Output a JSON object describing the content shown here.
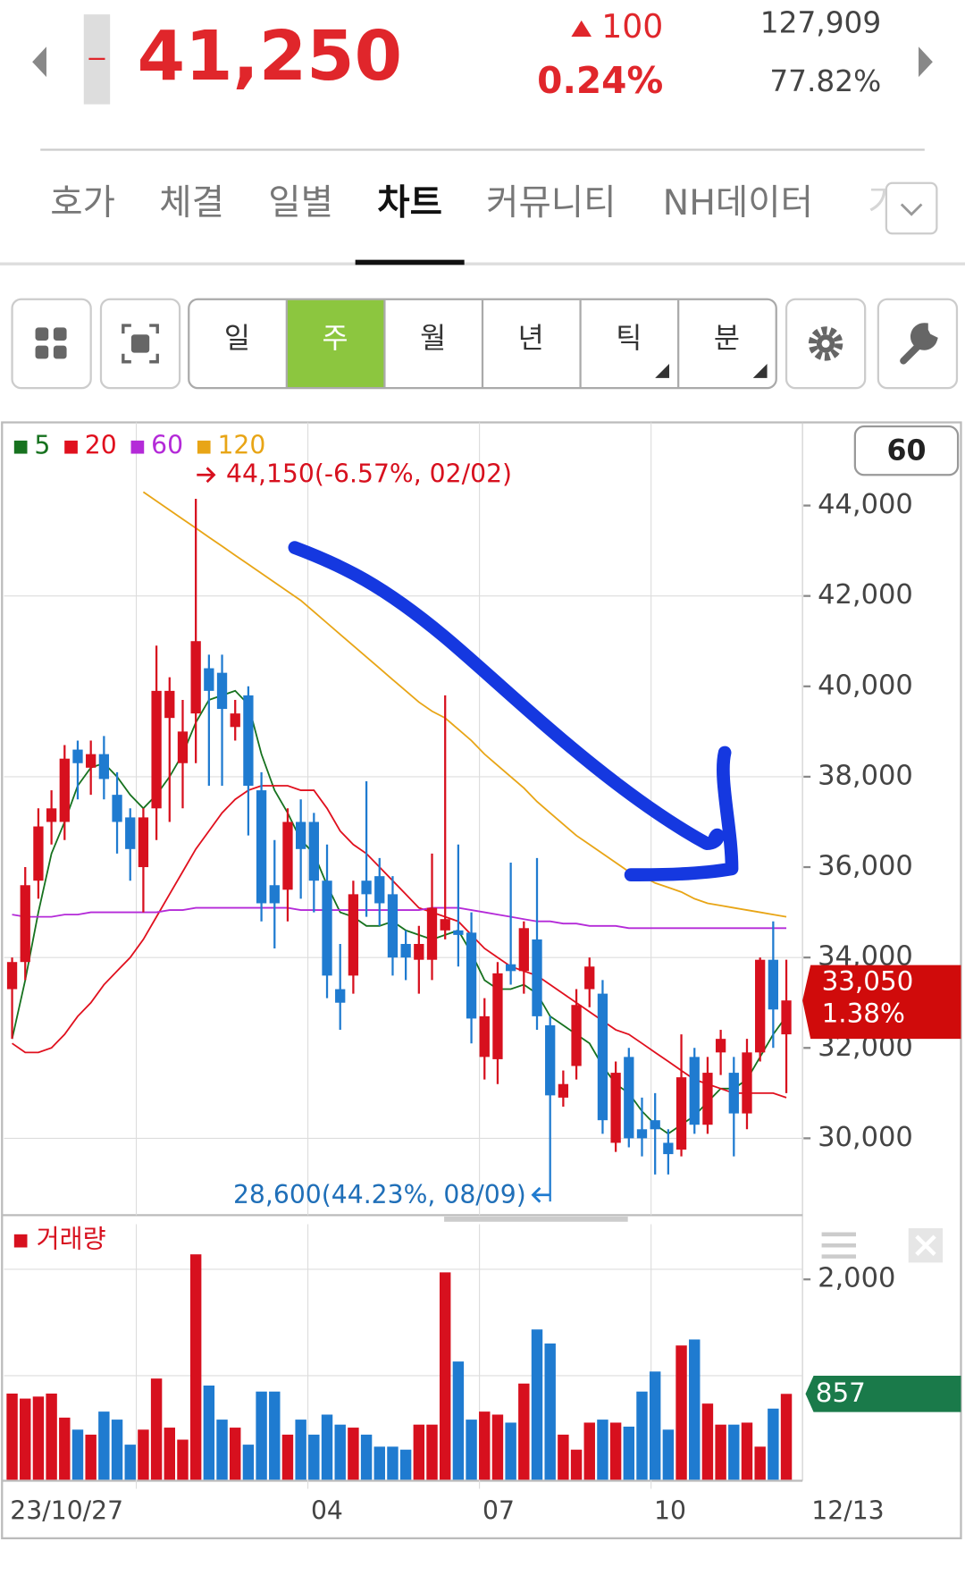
{
  "header": {
    "price": "41,250",
    "change": "100",
    "change_rate": "0.24%",
    "volume": "127,909",
    "volume_ratio": "77.82%"
  },
  "tabs": [
    "호가",
    "체결",
    "일별",
    "차트",
    "커뮤니티",
    "NH데이터",
    "거"
  ],
  "periods": [
    "일",
    "주",
    "월",
    "년",
    "틱",
    "분"
  ],
  "chart_data": {
    "type": "candlestick",
    "period_count": "60",
    "open": [
      33300,
      33900,
      35700,
      37000,
      37000,
      38600,
      38200,
      38500,
      37600,
      37100,
      36000,
      37300,
      39300,
      38300,
      39400,
      40400,
      40300,
      39100,
      39800,
      37700,
      35600,
      35500,
      37000,
      37000,
      35700,
      33300,
      33600,
      35700,
      35800,
      35400,
      34300,
      33950,
      33950,
      34600,
      34600,
      34550,
      31800,
      31750,
      33850,
      33700,
      34400,
      32500,
      30900,
      31600,
      33300,
      33200,
      29900,
      31800,
      30200,
      30400,
      29900,
      29750,
      31800,
      30300,
      31900,
      31450,
      30550,
      31900,
      33950,
      32300
    ],
    "high": [
      34000,
      36000,
      37300,
      37700,
      38700,
      38800,
      38800,
      38900,
      38100,
      37300,
      37300,
      40900,
      40200,
      39700,
      44150,
      40700,
      40700,
      39700,
      40000,
      38100,
      36600,
      37300,
      37500,
      37200,
      36500,
      34300,
      35700,
      37900,
      36200,
      35800,
      34600,
      34700,
      36300,
      39800,
      36500,
      35000,
      33100,
      33900,
      36100,
      34800,
      36200,
      32700,
      31500,
      33300,
      34000,
      33500,
      31700,
      32000,
      30900,
      31000,
      30200,
      32300,
      32000,
      31800,
      32400,
      31800,
      32200,
      34000,
      34800,
      33950
    ],
    "low": [
      32200,
      33500,
      35300,
      36500,
      36600,
      37500,
      37600,
      37500,
      36300,
      35700,
      35000,
      36600,
      37000,
      37300,
      38300,
      37800,
      37800,
      38800,
      36700,
      34800,
      34200,
      34800,
      35300,
      35000,
      33100,
      32400,
      33200,
      34900,
      34700,
      33600,
      33500,
      33200,
      33500,
      34400,
      33800,
      32100,
      31300,
      31200,
      33400,
      33200,
      32400,
      28600,
      30700,
      31300,
      32900,
      30100,
      29700,
      29800,
      29600,
      29200,
      29200,
      29600,
      30100,
      30100,
      31400,
      29600,
      30200,
      31700,
      32000,
      31000
    ],
    "close": [
      33900,
      35600,
      36900,
      37300,
      38400,
      38300,
      38500,
      37950,
      37000,
      36400,
      37100,
      39900,
      39900,
      39000,
      41000,
      39900,
      39500,
      39400,
      37800,
      35200,
      35200,
      37000,
      36400,
      35700,
      33600,
      33000,
      35400,
      35400,
      35200,
      34000,
      34000,
      34300,
      35100,
      34850,
      34500,
      32650,
      32700,
      33650,
      33700,
      34650,
      32700,
      30950,
      31200,
      32950,
      33800,
      30400,
      31450,
      30000,
      30000,
      30200,
      29650,
      31350,
      30300,
      31450,
      32200,
      30550,
      31900,
      33950,
      32850,
      33050
    ],
    "up_color": "#d7101e",
    "down_color": "#1f7bd0",
    "series": [
      {
        "name": "5",
        "color": "#17721f",
        "values": [
          32200,
          33500,
          35000,
          36300,
          37000,
          37800,
          38200,
          38300,
          38000,
          37600,
          37300,
          37600,
          38000,
          38500,
          39200,
          39700,
          39800,
          39900,
          39600,
          38500,
          37700,
          37200,
          36600,
          36300,
          35600,
          35000,
          34900,
          34700,
          34700,
          34800,
          34600,
          34500,
          34400,
          34500,
          34600,
          34100,
          33500,
          33300,
          33300,
          33400,
          33200,
          32700,
          32500,
          32300,
          32100,
          31600,
          31200,
          31000,
          30600,
          30300,
          30100,
          30300,
          30500,
          30800,
          31100,
          31100,
          31300,
          31800,
          32300,
          32700
        ]
      },
      {
        "name": "20",
        "color": "#e0101e",
        "values": [
          32100,
          31900,
          31900,
          32000,
          32300,
          32700,
          33000,
          33400,
          33700,
          34000,
          34400,
          34900,
          35400,
          35900,
          36400,
          36800,
          37200,
          37500,
          37700,
          37800,
          37800,
          37800,
          37700,
          37700,
          37300,
          36800,
          36500,
          36300,
          36000,
          35700,
          35400,
          35100,
          35000,
          34900,
          34800,
          34500,
          34200,
          34000,
          33800,
          33700,
          33600,
          33400,
          33200,
          33000,
          32800,
          32600,
          32400,
          32300,
          32100,
          31900,
          31700,
          31500,
          31300,
          31200,
          31100,
          31000,
          31000,
          31000,
          31000,
          30900
        ]
      },
      {
        "name": "60",
        "color": "#b42ad8",
        "values": [
          34950,
          34900,
          34900,
          34900,
          34950,
          34950,
          35000,
          35000,
          35000,
          35000,
          35000,
          35000,
          35050,
          35050,
          35100,
          35100,
          35100,
          35100,
          35100,
          35100,
          35100,
          35100,
          35050,
          35050,
          35050,
          35050,
          35050,
          35050,
          35050,
          35050,
          35050,
          35050,
          35100,
          35100,
          35100,
          35050,
          35000,
          34950,
          34900,
          34850,
          34800,
          34800,
          34750,
          34750,
          34700,
          34700,
          34700,
          34650,
          34650,
          34650,
          34650,
          34650,
          34650,
          34650,
          34650,
          34650,
          34650,
          34650,
          34650,
          34650
        ]
      },
      {
        "name": "120",
        "color": "#e8a516",
        "values": [
          null,
          null,
          null,
          null,
          null,
          null,
          null,
          null,
          null,
          null,
          44300,
          44100,
          43900,
          43700,
          43500,
          43300,
          43100,
          42900,
          42700,
          42500,
          42300,
          42100,
          41900,
          41650,
          41400,
          41150,
          40900,
          40650,
          40400,
          40150,
          39900,
          39650,
          39450,
          39300,
          39050,
          38800,
          38500,
          38250,
          38000,
          37750,
          37450,
          37200,
          36950,
          36700,
          36500,
          36300,
          36100,
          35900,
          35800,
          35650,
          35550,
          35450,
          35300,
          35200,
          35150,
          35100,
          35050,
          35000,
          34950,
          34900
        ]
      }
    ],
    "ylim": [
      28300,
      45840
    ],
    "yticks": [
      {
        "value": 30000,
        "label": "30,000"
      },
      {
        "value": 32000,
        "label": "32,000"
      },
      {
        "value": 34000,
        "label": "34,000"
      },
      {
        "value": 36000,
        "label": "36,000"
      },
      {
        "value": 38000,
        "label": "38,000"
      },
      {
        "value": 40000,
        "label": "40,000"
      },
      {
        "value": 42000,
        "label": "42,000"
      },
      {
        "value": 44000,
        "label": "44,000"
      }
    ],
    "close_label": "33,050",
    "change_label": "1.38%",
    "high_label": "44,150(-6.57%, 02/02)",
    "low_label": "28,600(44.23%, 08/09)",
    "xlabels": [
      "23/10/27",
      "04",
      "07",
      "10",
      "12/13"
    ],
    "volume": {
      "name": "거래량",
      "color": "#d7101e",
      "values": [
        860,
        810,
        830,
        860,
        620,
        500,
        450,
        680,
        600,
        350,
        500,
        1010,
        520,
        400,
        2250,
        940,
        600,
        520,
        350,
        880,
        880,
        450,
        600,
        450,
        650,
        550,
        520,
        450,
        330,
        330,
        300,
        550,
        550,
        2070,
        1180,
        600,
        680,
        650,
        570,
        960,
        1500,
        1360,
        450,
        300,
        570,
        600,
        570,
        530,
        880,
        1080,
        500,
        1340,
        1400,
        760,
        550,
        550,
        570,
        330,
        710,
        857
      ],
      "ylim": [
        0,
        2460
      ],
      "yticks": [
        {
          "value": 2000,
          "label": "2,000"
        }
      ]
    }
  }
}
